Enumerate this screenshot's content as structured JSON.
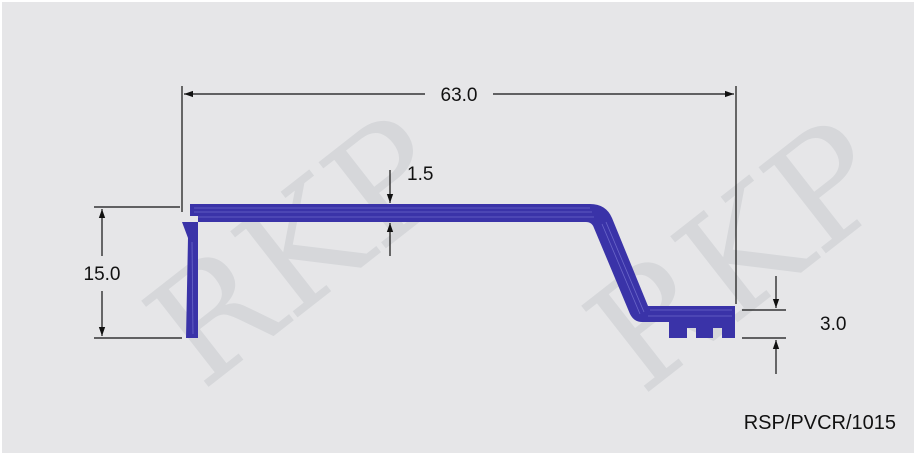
{
  "drawing": {
    "watermark": "RKP",
    "profile_color": "#3a33a8",
    "background_color": "#e6e6e8",
    "dimensions": {
      "overall_width": "63.0",
      "overall_height": "15.0",
      "wall_thickness": "1.5",
      "foot_height": "3.0"
    },
    "product_code": "RSP/PVCR/1015"
  }
}
